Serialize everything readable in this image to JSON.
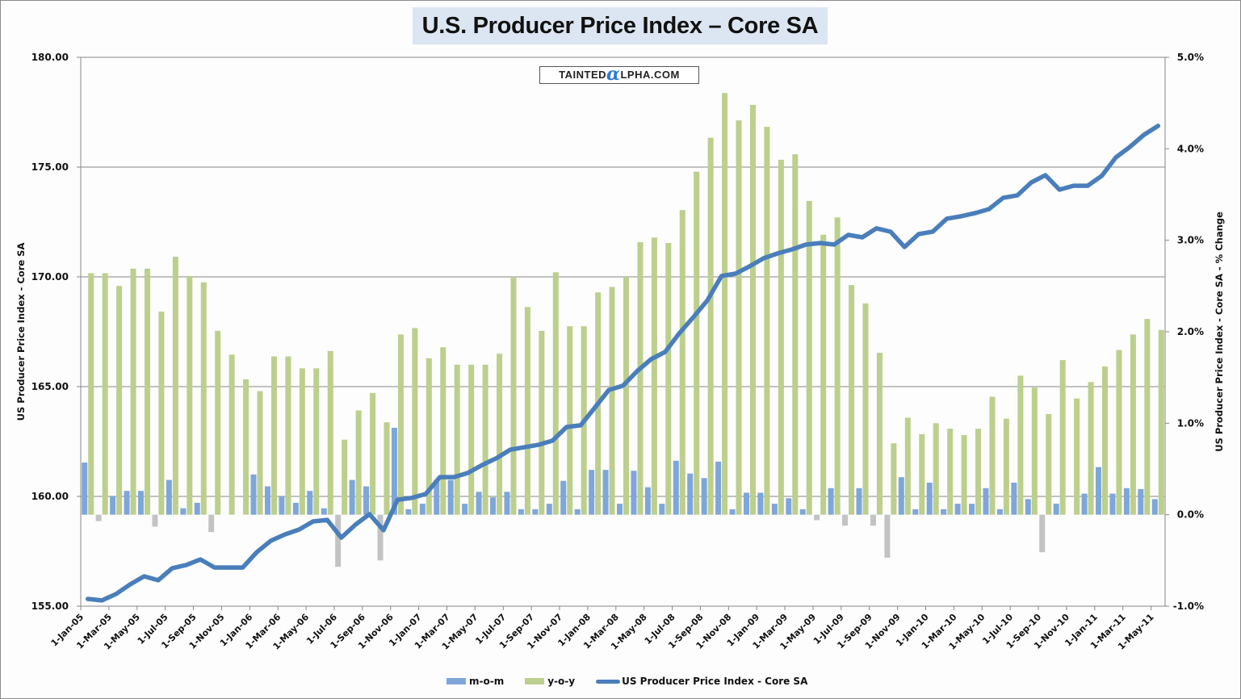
{
  "header": {
    "title": "U.S. Producer Price Index – Core SA",
    "logo_text_left": "TAINTED",
    "logo_alpha": "α",
    "logo_text_right": "LPHA.COM"
  },
  "colors": {
    "mom_positive": "#7fa6d9",
    "mom_negative": "#c3c3c3",
    "yoy": "#bccf8d",
    "line": "#4a7ebb",
    "grid": "#868686",
    "title_bg": "#dce5f2"
  },
  "chart_data": {
    "type": "bar+line",
    "title": "U.S. Producer Price Index – Core SA",
    "ylabel_left": "US Producer Price Index - Core SA",
    "ylabel_right": "US Producer Price Index - Core SA - % Change",
    "ylim_left": [
      155,
      180
    ],
    "ylim_right": [
      -1.0,
      5.0
    ],
    "yticks_left": [
      "180.00",
      "175.00",
      "170.00",
      "165.00",
      "160.00",
      "155.00"
    ],
    "yticks_left_values": [
      180,
      175,
      170,
      165,
      160,
      155
    ],
    "yticks_right": [
      "5.0%",
      "4.0%",
      "3.0%",
      "2.0%",
      "1.0%",
      "0.0%",
      "-1.0%"
    ],
    "yticks_right_values": [
      5,
      4,
      3,
      2,
      1,
      0,
      -1
    ],
    "grid": "horizontal, left axis",
    "legend_position": "bottom",
    "xtick_labels": [
      "1-Jan-05",
      "1-Mar-05",
      "1-May-05",
      "1-Jul-05",
      "1-Sep-05",
      "1-Nov-05",
      "1-Jan-06",
      "1-Mar-06",
      "1-May-06",
      "1-Jul-06",
      "1-Sep-06",
      "1-Nov-06",
      "1-Jan-07",
      "1-Mar-07",
      "1-May-07",
      "1-Jul-07",
      "1-Sep-07",
      "1-Nov-07",
      "1-Jan-08",
      "1-Mar-08",
      "1-May-08",
      "1-Jul-08",
      "1-Sep-08",
      "1-Nov-08",
      "1-Jan-09",
      "1-Mar-09",
      "1-May-09",
      "1-Jul-09",
      "1-Sep-09",
      "1-Nov-09",
      "1-Jan-10",
      "1-Mar-10",
      "1-May-10",
      "1-Jul-10",
      "1-Sep-10",
      "1-Nov-10",
      "1-Jan-11",
      "1-Mar-11",
      "1-May-11"
    ],
    "categories": [
      "Jan-05",
      "Feb-05",
      "Mar-05",
      "Apr-05",
      "May-05",
      "Jun-05",
      "Jul-05",
      "Aug-05",
      "Sep-05",
      "Oct-05",
      "Nov-05",
      "Dec-05",
      "Jan-06",
      "Feb-06",
      "Mar-06",
      "Apr-06",
      "May-06",
      "Jun-06",
      "Jul-06",
      "Aug-06",
      "Sep-06",
      "Oct-06",
      "Nov-06",
      "Dec-06",
      "Jan-07",
      "Feb-07",
      "Mar-07",
      "Apr-07",
      "May-07",
      "Jun-07",
      "Jul-07",
      "Aug-07",
      "Sep-07",
      "Oct-07",
      "Nov-07",
      "Dec-07",
      "Jan-08",
      "Feb-08",
      "Mar-08",
      "Apr-08",
      "May-08",
      "Jun-08",
      "Jul-08",
      "Aug-08",
      "Sep-08",
      "Oct-08",
      "Nov-08",
      "Dec-08",
      "Jan-09",
      "Feb-09",
      "Mar-09",
      "Apr-09",
      "May-09",
      "Jun-09",
      "Jul-09",
      "Aug-09",
      "Sep-09",
      "Oct-09",
      "Nov-09",
      "Dec-09",
      "Jan-10",
      "Feb-10",
      "Mar-10",
      "Apr-10",
      "May-10",
      "Jun-10",
      "Jul-10",
      "Aug-10",
      "Sep-10",
      "Oct-10",
      "Nov-10",
      "Dec-10",
      "Jan-11",
      "Feb-11",
      "Mar-11",
      "Apr-11",
      "May-11"
    ],
    "series": [
      {
        "name": "m-o-m",
        "type": "bar",
        "axis": "right",
        "unit": "%",
        "values": [
          0.57,
          -0.07,
          0.2,
          0.26,
          0.26,
          -0.13,
          0.38,
          0.07,
          0.13,
          -0.19,
          0,
          0,
          0.44,
          0.31,
          0.2,
          0.13,
          0.26,
          0.07,
          -0.57,
          0.38,
          0.31,
          -0.5,
          0.95,
          0.06,
          0.12,
          0.38,
          0.38,
          0.12,
          0.25,
          0.19,
          0.25,
          0.06,
          0.06,
          0.12,
          0.37,
          0.06,
          0.49,
          0.49,
          0.12,
          0.48,
          0.3,
          0.12,
          0.59,
          0.45,
          0.4,
          0.58,
          0.06,
          0.24,
          0.24,
          0.12,
          0.18,
          0.06,
          -0.06,
          0.29,
          -0.12,
          0.29,
          -0.12,
          -0.47,
          0.41,
          0.06,
          0.35,
          0.06,
          0.12,
          0.12,
          0.29,
          0.06,
          0.35,
          0.17,
          -0.41,
          0.12,
          0,
          0.23,
          0.52,
          0.23,
          0.29,
          0.28,
          0.17
        ]
      },
      {
        "name": "y-o-y",
        "type": "bar",
        "axis": "right",
        "unit": "%",
        "values": [
          2.64,
          2.64,
          2.5,
          2.69,
          2.69,
          2.22,
          2.82,
          2.61,
          2.54,
          2.01,
          1.75,
          1.48,
          1.35,
          1.73,
          1.73,
          1.6,
          1.6,
          1.79,
          0.82,
          1.14,
          1.33,
          1.01,
          1.97,
          2.04,
          1.71,
          1.83,
          1.64,
          1.64,
          1.64,
          1.76,
          2.59,
          2.27,
          2.01,
          2.65,
          2.06,
          2.06,
          2.43,
          2.49,
          2.6,
          2.98,
          3.03,
          2.97,
          3.33,
          3.75,
          4.12,
          4.61,
          4.31,
          4.48,
          4.24,
          3.88,
          3.94,
          3.43,
          3.06,
          3.25,
          2.51,
          2.31,
          1.77,
          0.78,
          1.06,
          0.88,
          1.0,
          0.94,
          0.87,
          0.94,
          1.29,
          1.05,
          1.52,
          1.39,
          1.1,
          1.69,
          1.27,
          1.45,
          1.62,
          1.8,
          1.97,
          2.14,
          2.02
        ]
      },
      {
        "name": "US Producer Price Index - Core SA",
        "type": "line",
        "axis": "left",
        "values": [
          155.33,
          155.26,
          155.55,
          155.99,
          156.36,
          156.18,
          156.73,
          156.88,
          157.13,
          156.76,
          156.76,
          156.76,
          157.46,
          157.98,
          158.27,
          158.49,
          158.86,
          158.93,
          158.12,
          158.71,
          159.19,
          158.46,
          159.85,
          159.93,
          160.11,
          160.88,
          160.88,
          161.07,
          161.43,
          161.73,
          162.13,
          162.24,
          162.35,
          162.54,
          163.16,
          163.24,
          164.04,
          164.85,
          165.04,
          165.7,
          166.25,
          166.58,
          167.43,
          168.16,
          168.93,
          170.04,
          170.15,
          170.48,
          170.85,
          171.07,
          171.25,
          171.47,
          171.54,
          171.47,
          171.91,
          171.8,
          172.21,
          172.06,
          171.36,
          171.95,
          172.06,
          172.65,
          172.76,
          172.9,
          173.09,
          173.6,
          173.71,
          174.3,
          174.63,
          173.97,
          174.15,
          174.15,
          174.6,
          175.44,
          175.92,
          176.47,
          176.88
        ]
      }
    ]
  },
  "legend": {
    "mom": "m-o-m",
    "yoy": "y-o-y",
    "line": "US Producer Price Index - Core SA"
  }
}
